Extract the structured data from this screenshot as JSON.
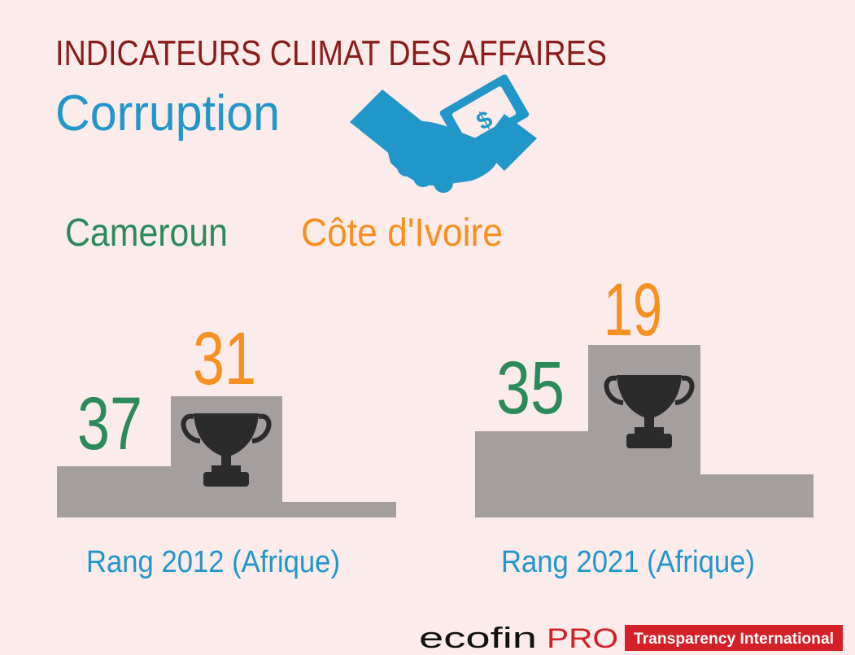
{
  "header": {
    "title": "INDICATEURS CLIMAT DES AFFAIRES",
    "subtitle": "Corruption"
  },
  "legend": [
    "Cameroun",
    "Côte d'Ivoire"
  ],
  "podiums": [
    {
      "label": "Rang 2012 (Afrique)",
      "values": [
        "37",
        "31"
      ]
    },
    {
      "label": "Rang 2021 (Afrique)",
      "values": [
        "35",
        "19"
      ]
    }
  ],
  "footer": {
    "brand": "ecofin",
    "brand_suffix": "PRO",
    "source": "Transparency International"
  }
}
